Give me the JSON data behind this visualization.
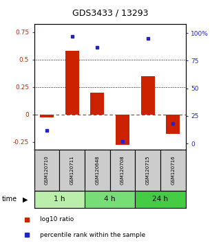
{
  "title": "GDS3433 / 13293",
  "samples": [
    "GSM120710",
    "GSM120711",
    "GSM120648",
    "GSM120708",
    "GSM120715",
    "GSM120716"
  ],
  "groups": [
    {
      "label": "1 h",
      "indices": [
        0,
        1
      ],
      "color": "#bbeeaa"
    },
    {
      "label": "4 h",
      "indices": [
        2,
        3
      ],
      "color": "#77dd77"
    },
    {
      "label": "24 h",
      "indices": [
        4,
        5
      ],
      "color": "#44cc44"
    }
  ],
  "log10_ratio": [
    -0.03,
    0.58,
    0.2,
    -0.28,
    0.35,
    -0.18
  ],
  "percentile_rank": [
    12,
    97,
    87,
    2,
    95,
    18
  ],
  "bar_color": "#cc2200",
  "dot_color": "#2222cc",
  "ylim_left": [
    -0.32,
    0.82
  ],
  "ylim_right": [
    -5.33,
    108.0
  ],
  "yticks_left": [
    -0.25,
    0.0,
    0.25,
    0.5,
    0.75
  ],
  "ytick_labels_left": [
    "-0.25",
    "0",
    "0.25",
    "0.5",
    "0.75"
  ],
  "yticks_right": [
    0,
    25,
    50,
    75,
    100
  ],
  "ytick_labels_right": [
    "0",
    "25",
    "50",
    "75",
    "100%"
  ],
  "hline_dotted": [
    0.25,
    0.5
  ],
  "hline_dashed_zero": 0.0,
  "legend_entries": [
    "log10 ratio",
    "percentile rank within the sample"
  ],
  "legend_colors": [
    "#cc2200",
    "#2222cc"
  ],
  "time_label": "time",
  "left_axis_color": "#cc2200",
  "right_axis_color": "#2222cc",
  "background_plot": "#ffffff",
  "background_samples": "#cccccc",
  "background_fig": "#ffffff"
}
